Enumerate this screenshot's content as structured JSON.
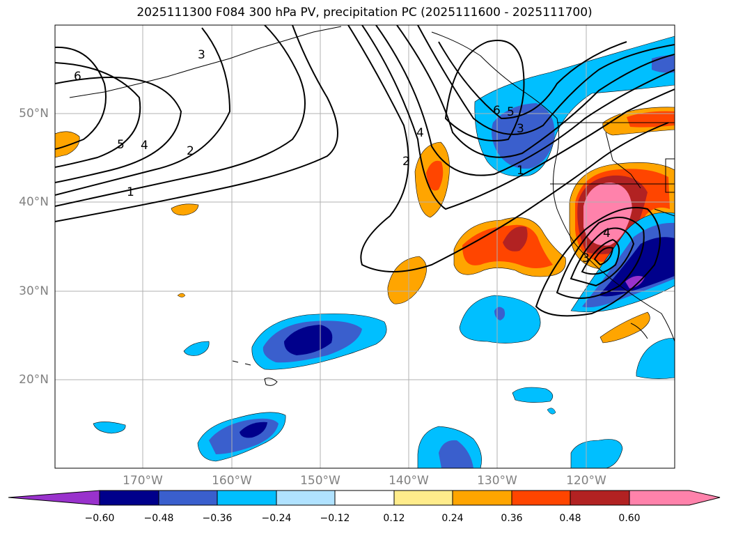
{
  "title": "2025111300 F084 300 hPa PV, precipitation PC (2025111600 - 2025111700)",
  "map": {
    "lat_labels": [
      "50°N",
      "40°N",
      "30°N",
      "20°N"
    ],
    "lon_labels": [
      "170°W",
      "160°W",
      "150°W",
      "140°W",
      "130°W",
      "120°W"
    ],
    "pv_contour_labels": [
      "6",
      "5",
      "4",
      "3",
      "2",
      "1",
      "2",
      "4",
      "6",
      "5",
      "3",
      "1",
      "4",
      "3"
    ],
    "colors": {
      "neg_extreme": "#9932cc",
      "neg_060": "#00008b",
      "neg_048": "#3a5fcd",
      "neg_036": "#00bfff",
      "neg_024": "#b0e2ff",
      "pos_012": "#ffec8b",
      "pos_024": "#ffa500",
      "pos_036": "#ff4500",
      "pos_048": "#b22222",
      "pos_060": "#ff82ab"
    }
  },
  "colorbar": {
    "ticks": [
      "−0.60",
      "−0.48",
      "−0.36",
      "−0.24",
      "−0.12",
      "0.12",
      "0.24",
      "0.36",
      "0.48",
      "0.60"
    ]
  }
}
